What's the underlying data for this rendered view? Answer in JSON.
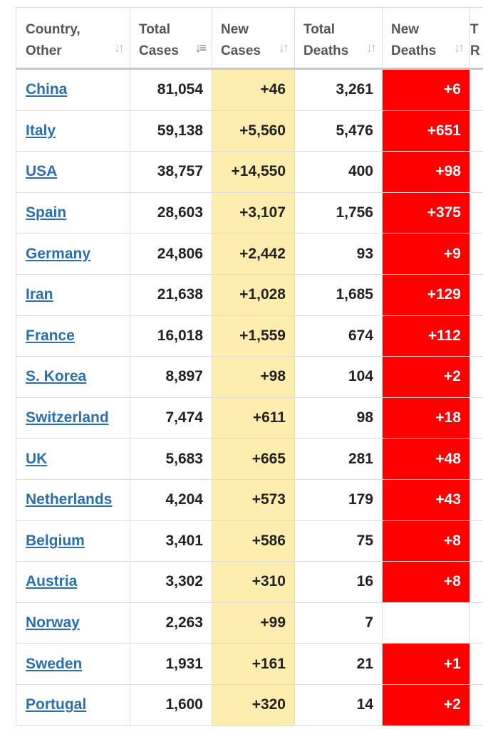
{
  "columns": [
    {
      "label": "Country,\nOther",
      "sort_icon": "sort-arrows-icon"
    },
    {
      "label": "Total\nCases",
      "sort_icon": "sort-desc-icon"
    },
    {
      "label": "New\nCases",
      "sort_icon": "sort-arrows-icon"
    },
    {
      "label": "Total\nDeaths",
      "sort_icon": "sort-arrows-icon"
    },
    {
      "label": "New\nDeaths",
      "sort_icon": "sort-arrows-icon"
    },
    {
      "label": "T\nR"
    }
  ],
  "colors": {
    "new_cases_bg": "#fdeeb0",
    "new_deaths_bg": "#ff0000",
    "link": "#2a6fae"
  },
  "rows": [
    {
      "country": "China",
      "total_cases": "81,054",
      "new_cases": "+46",
      "total_deaths": "3,261",
      "new_deaths": "+6"
    },
    {
      "country": "Italy",
      "total_cases": "59,138",
      "new_cases": "+5,560",
      "total_deaths": "5,476",
      "new_deaths": "+651"
    },
    {
      "country": "USA",
      "total_cases": "38,757",
      "new_cases": "+14,550",
      "total_deaths": "400",
      "new_deaths": "+98"
    },
    {
      "country": "Spain",
      "total_cases": "28,603",
      "new_cases": "+3,107",
      "total_deaths": "1,756",
      "new_deaths": "+375"
    },
    {
      "country": "Germany",
      "total_cases": "24,806",
      "new_cases": "+2,442",
      "total_deaths": "93",
      "new_deaths": "+9"
    },
    {
      "country": "Iran",
      "total_cases": "21,638",
      "new_cases": "+1,028",
      "total_deaths": "1,685",
      "new_deaths": "+129"
    },
    {
      "country": "France",
      "total_cases": "16,018",
      "new_cases": "+1,559",
      "total_deaths": "674",
      "new_deaths": "+112"
    },
    {
      "country": "S. Korea",
      "total_cases": "8,897",
      "new_cases": "+98",
      "total_deaths": "104",
      "new_deaths": "+2"
    },
    {
      "country": "Switzerland",
      "total_cases": "7,474",
      "new_cases": "+611",
      "total_deaths": "98",
      "new_deaths": "+18"
    },
    {
      "country": "UK",
      "total_cases": "5,683",
      "new_cases": "+665",
      "total_deaths": "281",
      "new_deaths": "+48"
    },
    {
      "country": "Netherlands",
      "total_cases": "4,204",
      "new_cases": "+573",
      "total_deaths": "179",
      "new_deaths": "+43"
    },
    {
      "country": "Belgium",
      "total_cases": "3,401",
      "new_cases": "+586",
      "total_deaths": "75",
      "new_deaths": "+8"
    },
    {
      "country": "Austria",
      "total_cases": "3,302",
      "new_cases": "+310",
      "total_deaths": "16",
      "new_deaths": "+8"
    },
    {
      "country": "Norway",
      "total_cases": "2,263",
      "new_cases": "+99",
      "total_deaths": "7",
      "new_deaths": ""
    },
    {
      "country": "Sweden",
      "total_cases": "1,931",
      "new_cases": "+161",
      "total_deaths": "21",
      "new_deaths": "+1"
    },
    {
      "country": "Portugal",
      "total_cases": "1,600",
      "new_cases": "+320",
      "total_deaths": "14",
      "new_deaths": "+2"
    }
  ]
}
